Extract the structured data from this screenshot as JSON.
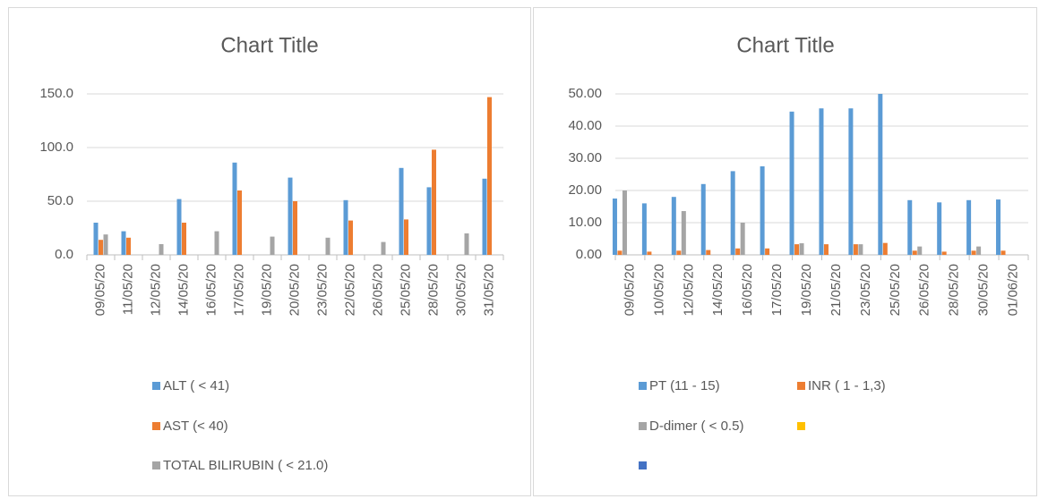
{
  "chart_data": [
    {
      "type": "bar",
      "title": "Chart Title",
      "categories": [
        "09/05/20",
        "11/05/20",
        "12/05/20",
        "14/05/20",
        "16/05/20",
        "17/05/20",
        "19/05/20",
        "20/05/20",
        "23/05/20",
        "22/05/20",
        "26/05/20",
        "25/05/20",
        "28/05/20",
        "30/05/20",
        "31/05/20"
      ],
      "series": [
        {
          "name": "ALT ( < 41)",
          "color": "#5b9bd5",
          "values": [
            30,
            22,
            null,
            52,
            null,
            86,
            null,
            72,
            null,
            51,
            null,
            81,
            63,
            null,
            71
          ]
        },
        {
          "name": "AST (< 40)",
          "color": "#ed7d31",
          "values": [
            14,
            16,
            null,
            30,
            null,
            60,
            null,
            50,
            null,
            32,
            null,
            33,
            98,
            null,
            147
          ]
        },
        {
          "name": "TOTAL BILIRUBIN ( < 21.0)",
          "color": "#a5a5a5",
          "values": [
            19,
            null,
            10,
            null,
            22,
            null,
            17,
            null,
            16,
            null,
            12,
            null,
            null,
            20,
            null
          ]
        }
      ],
      "ylim": [
        0,
        150
      ],
      "yticks": [
        {
          "value": 0,
          "label": "0.0"
        },
        {
          "value": 50,
          "label": "50.0"
        },
        {
          "value": 100,
          "label": "100.0"
        },
        {
          "value": 150,
          "label": "150.0"
        }
      ],
      "grid": true
    },
    {
      "type": "bar",
      "title": "Chart Title",
      "categories": [
        "09/05/20",
        "10/05/20",
        "12/05/20",
        "14/05/20",
        "16/05/20",
        "17/05/20",
        "19/05/20",
        "21/05/20",
        "23/05/20",
        "25/05/20",
        "26/05/20",
        "28/05/20",
        "30/05/20",
        "01/06/20"
      ],
      "series": [
        {
          "name": "PT (11 - 15)",
          "color": "#5b9bd5",
          "values": [
            17.5,
            16,
            18,
            22,
            26,
            27.5,
            44.5,
            45.5,
            45.5,
            50,
            17,
            16.3,
            17,
            17.2
          ]
        },
        {
          "name": "INR ( 1 - 1,3)",
          "color": "#ed7d31",
          "values": [
            1.3,
            1,
            1.3,
            1.5,
            2,
            2,
            3.3,
            3.3,
            3.3,
            3.7,
            1.3,
            1,
            1.3,
            1.3
          ]
        },
        {
          "name": "D-dimer ( < 0.5)",
          "color": "#a5a5a5",
          "values": [
            20,
            null,
            13.6,
            null,
            10,
            null,
            3.6,
            null,
            3.3,
            null,
            2.6,
            null,
            2.6,
            null
          ]
        },
        {
          "name": null,
          "color": "#ffc000",
          "values": [
            null,
            null,
            null,
            null,
            null,
            null,
            null,
            null,
            null,
            null,
            null,
            null,
            null,
            null
          ]
        },
        {
          "name": null,
          "color": "#4472c4",
          "values": [
            null,
            null,
            null,
            null,
            null,
            null,
            null,
            null,
            null,
            null,
            null,
            null,
            null,
            null
          ]
        }
      ],
      "ylim": [
        0,
        50
      ],
      "yticks": [
        {
          "value": 0,
          "label": "0.00"
        },
        {
          "value": 10,
          "label": "10.00"
        },
        {
          "value": 20,
          "label": "20.00"
        },
        {
          "value": 30,
          "label": "30.00"
        },
        {
          "value": 40,
          "label": "40.00"
        },
        {
          "value": 50,
          "label": "50.00"
        }
      ],
      "grid": true
    }
  ]
}
